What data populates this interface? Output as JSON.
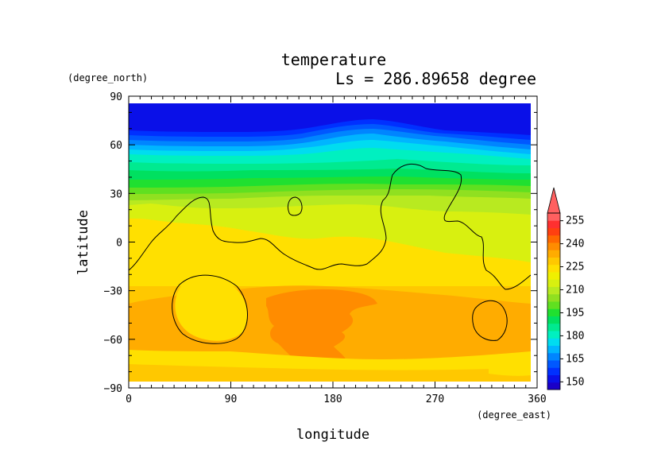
{
  "chart_data": {
    "type": "heatmap",
    "title": "temperature",
    "subtitle": "Ls = 286.89658 degree",
    "xlabel": "longitude",
    "ylabel": "latitude",
    "x_unit": "(degree_east)",
    "y_unit": "(degree_north)",
    "xlim": [
      0,
      360
    ],
    "ylim": [
      -90,
      90
    ],
    "x_ticks": [
      0,
      90,
      180,
      270,
      360
    ],
    "y_ticks": [
      90,
      60,
      30,
      0,
      -30,
      -60,
      -90
    ],
    "colorbar": {
      "levels": [
        145,
        150,
        155,
        160,
        165,
        170,
        175,
        180,
        185,
        190,
        195,
        200,
        205,
        210,
        215,
        220,
        225,
        230,
        235,
        240,
        245,
        250,
        255,
        260
      ],
      "tick_labels": [
        150,
        165,
        180,
        195,
        210,
        225,
        240,
        255
      ],
      "colors": [
        "#1a00c8",
        "#0a10e8",
        "#0030ff",
        "#0058ff",
        "#0085ff",
        "#00b5ff",
        "#00dcf0",
        "#00f0c0",
        "#00ea90",
        "#00e060",
        "#20e030",
        "#60e020",
        "#90e020",
        "#b8ea20",
        "#d8f010",
        "#f0f000",
        "#ffe000",
        "#ffc800",
        "#ffac00",
        "#ff8c00",
        "#ff6800",
        "#ff4010",
        "#ff3030",
        "#ff6060"
      ],
      "extend": "max"
    }
  }
}
